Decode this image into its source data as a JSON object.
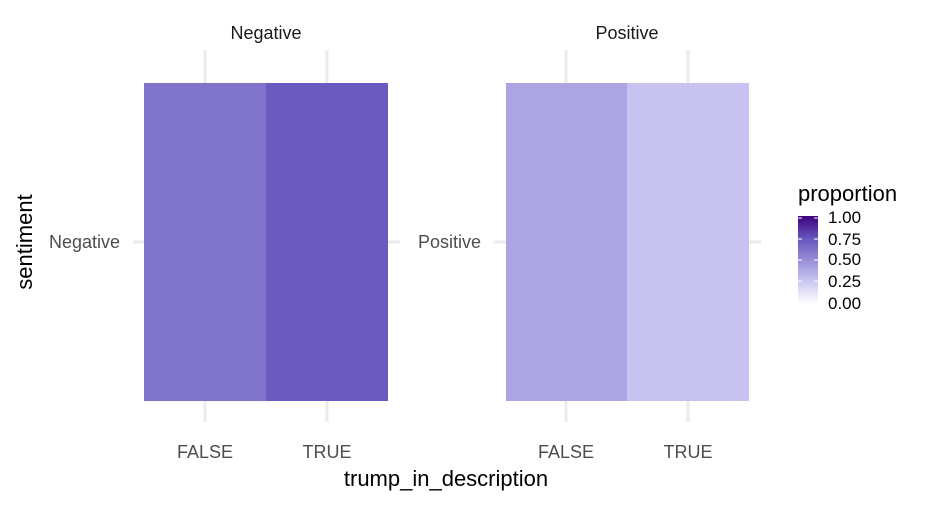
{
  "chart_data": {
    "type": "heatmap",
    "xlabel": "trump_in_description",
    "ylabel": "sentiment",
    "x_categories": [
      "FALSE",
      "TRUE"
    ],
    "facets": [
      {
        "strip": "Negative",
        "y_categories": [
          "Negative"
        ],
        "cells": [
          {
            "x": "FALSE",
            "y": "Negative",
            "proportion": 0.6
          },
          {
            "x": "TRUE",
            "y": "Negative",
            "proportion": 0.72
          }
        ]
      },
      {
        "strip": "Positive",
        "y_categories": [
          "Positive"
        ],
        "cells": [
          {
            "x": "FALSE",
            "y": "Positive",
            "proportion": 0.4
          },
          {
            "x": "TRUE",
            "y": "Positive",
            "proportion": 0.28
          }
        ]
      }
    ],
    "legend": {
      "title": "proportion",
      "range": [
        0,
        1
      ],
      "breaks": [
        "1.00",
        "0.75",
        "0.50",
        "0.25",
        "0.00"
      ],
      "low_color": "#ffffff",
      "high_color": "#3f007d",
      "placement": "right"
    },
    "grid": true
  }
}
